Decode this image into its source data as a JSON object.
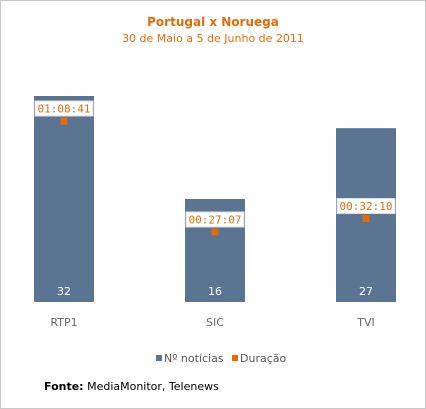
{
  "chart_data": {
    "type": "bar",
    "title": "Portugal x Noruega",
    "subtitle": "30 de Maio a 5 de Junho de 2011",
    "categories": [
      "RTP1",
      "SIC",
      "TVI"
    ],
    "series": [
      {
        "name": "Nº notícias",
        "values": [
          32,
          16,
          27
        ],
        "color": "#5a7492"
      },
      {
        "name": "Duração",
        "values": [
          68.68,
          27.12,
          32.17
        ],
        "labels": [
          "01:08:41",
          "00:27:07",
          "00:32:10"
        ],
        "color": "#e36c0a"
      }
    ],
    "legend_position": "bottom",
    "grid": false
  },
  "source": {
    "label": "Fonte:",
    "text": "MediaMonitor, Telenews"
  }
}
